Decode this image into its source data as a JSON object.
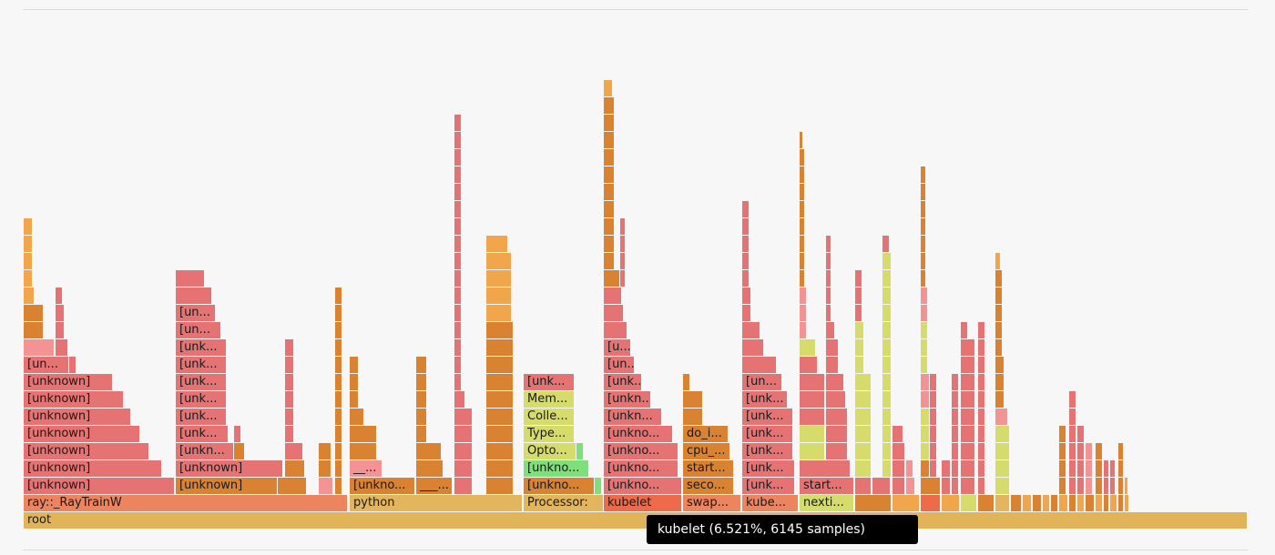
{
  "colors": {
    "root": "#e1b45a",
    "red": "#e57373",
    "orange": "#e38b3c",
    "coral": "#ec8460",
    "lightorange": "#f2a64c",
    "yellowgreen": "#d6dc6c",
    "green": "#7ee07a",
    "pink": "#f39393",
    "gold": "#e3b65e",
    "darkorange": "#d98232",
    "kubelet": "#ef6a4a"
  },
  "root_label": "root",
  "processes": [
    "ray::_RayTrainW",
    "python",
    "Processor:",
    "kubelet",
    "swap...",
    "kube...",
    "nexti..."
  ],
  "frame_labels": {
    "unknown": "[unknown]",
    "unkno": "[unkno...",
    "unkn": "[unkn...",
    "unk": "[unk...",
    "un": "[un...",
    "u": "[u...",
    "ray_unk": "[un...",
    "unkno_short": "[unkno...",
    "dots": "___...",
    "underscore": "__...",
    "mem": "Mem...",
    "colle": "Colle...",
    "type": "Type...",
    "opto": "Opto...",
    "unkno_g": "[unkno...",
    "do_i": "do_i...",
    "cpu": "cpu_...",
    "start": "start...",
    "seco": "seco...",
    "start2": "start..."
  },
  "tooltip": "kubelet (6.521%, 6145 samples)"
}
